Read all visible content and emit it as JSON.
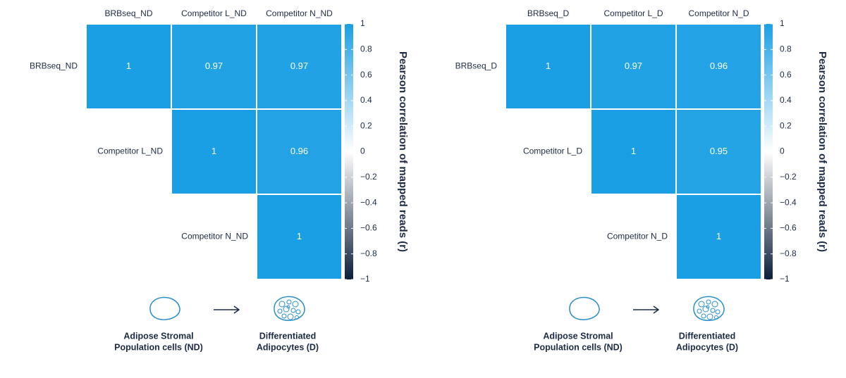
{
  "chart_data": [
    {
      "type": "heatmap",
      "categories": [
        "BRBseq_ND",
        "Competitor L_ND",
        "Competitor N_ND"
      ],
      "rows": [
        "BRBseq_ND",
        "Competitor L_ND",
        "Competitor N_ND"
      ],
      "values": [
        [
          1,
          0.97,
          0.97
        ],
        [
          null,
          1,
          0.96
        ],
        [
          null,
          null,
          1
        ]
      ],
      "colorbar_label": "Pearson correlation of mapped reads (r)",
      "clim": [
        -1,
        1
      ],
      "colormap": [
        "#0b1f3a",
        "#ffffff",
        "#1a9fe4"
      ],
      "cticks": [
        {
          "value": -1,
          "label": "−1"
        },
        {
          "value": -0.8,
          "label": "−0.8"
        },
        {
          "value": -0.6,
          "label": "−0.6"
        },
        {
          "value": -0.4,
          "label": "−0.4"
        },
        {
          "value": -0.2,
          "label": "−0.2"
        },
        0,
        0.2,
        0.4,
        0.6,
        0.8,
        1
      ],
      "annotations": [
        [
          "Adipose Stromal",
          "Population cells (ND)"
        ],
        [
          "Differentiated",
          "Adipocytes (D)"
        ]
      ]
    },
    {
      "type": "heatmap",
      "categories": [
        "BRBseq_D",
        "Competitor L_D",
        "Competitor N_D"
      ],
      "rows": [
        "BRBseq_D",
        "Competitor L_D",
        "Competitor N_D"
      ],
      "values": [
        [
          1,
          0.97,
          0.96
        ],
        [
          null,
          1,
          0.95
        ],
        [
          null,
          null,
          1
        ]
      ],
      "colorbar_label": "Pearson correlation of mapped reads (r)",
      "clim": [
        -1,
        1
      ],
      "colormap": [
        "#0b1f3a",
        "#ffffff",
        "#1a9fe4"
      ],
      "cticks": [
        {
          "value": -1,
          "label": "−1"
        },
        {
          "value": -0.8,
          "label": "−0.8"
        },
        {
          "value": -0.6,
          "label": "−0.6"
        },
        {
          "value": -0.4,
          "label": "−0.4"
        },
        {
          "value": -0.2,
          "label": "−0.2"
        },
        0,
        0.2,
        0.4,
        0.6,
        0.8,
        1
      ],
      "annotations": [
        [
          "Adipose Stromal",
          "Population cells (ND)"
        ],
        [
          "Differentiated",
          "Adipocytes (D)"
        ]
      ]
    }
  ]
}
